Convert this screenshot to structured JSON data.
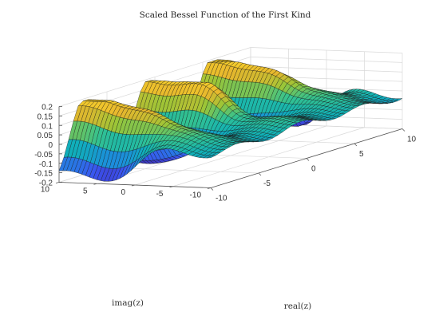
{
  "chart_data": {
    "type": "surface",
    "title": "Scaled Bessel Function of the First Kind",
    "xlabel": "real(z)",
    "ylabel": "imag(z)",
    "zlabel": "",
    "function": "besselj(nu=2, z) scaled",
    "xlim": [
      -10,
      10
    ],
    "ylim": [
      -10,
      10
    ],
    "zlim": [
      -0.2,
      0.2
    ],
    "xticks": [
      -10,
      -5,
      0,
      5,
      10
    ],
    "yticks": [
      -10,
      -5,
      0,
      5,
      10
    ],
    "zticks": [
      -0.2,
      -0.15,
      -0.1,
      -0.05,
      0,
      0.05,
      0.1,
      0.15,
      0.2
    ],
    "xtick_labels": [
      "-10",
      "-5",
      "0",
      "5",
      "10"
    ],
    "ytick_labels": [
      "-10",
      "-5",
      "0",
      "5",
      "10"
    ],
    "ztick_labels": [
      "-0.2",
      "-0.15",
      "-0.1",
      "-0.05",
      "0",
      "0.05",
      "0.1",
      "0.15",
      "0.2"
    ],
    "colormap": [
      "#3e26a8",
      "#3b54f0",
      "#1c8ddc",
      "#0fb1b8",
      "#35c28e",
      "#9bc537",
      "#e6b62d",
      "#f9d32b"
    ],
    "grid": true,
    "grid_resolution": [
      40,
      40
    ],
    "peak_value": 0.19,
    "trough_value": -0.19
  }
}
